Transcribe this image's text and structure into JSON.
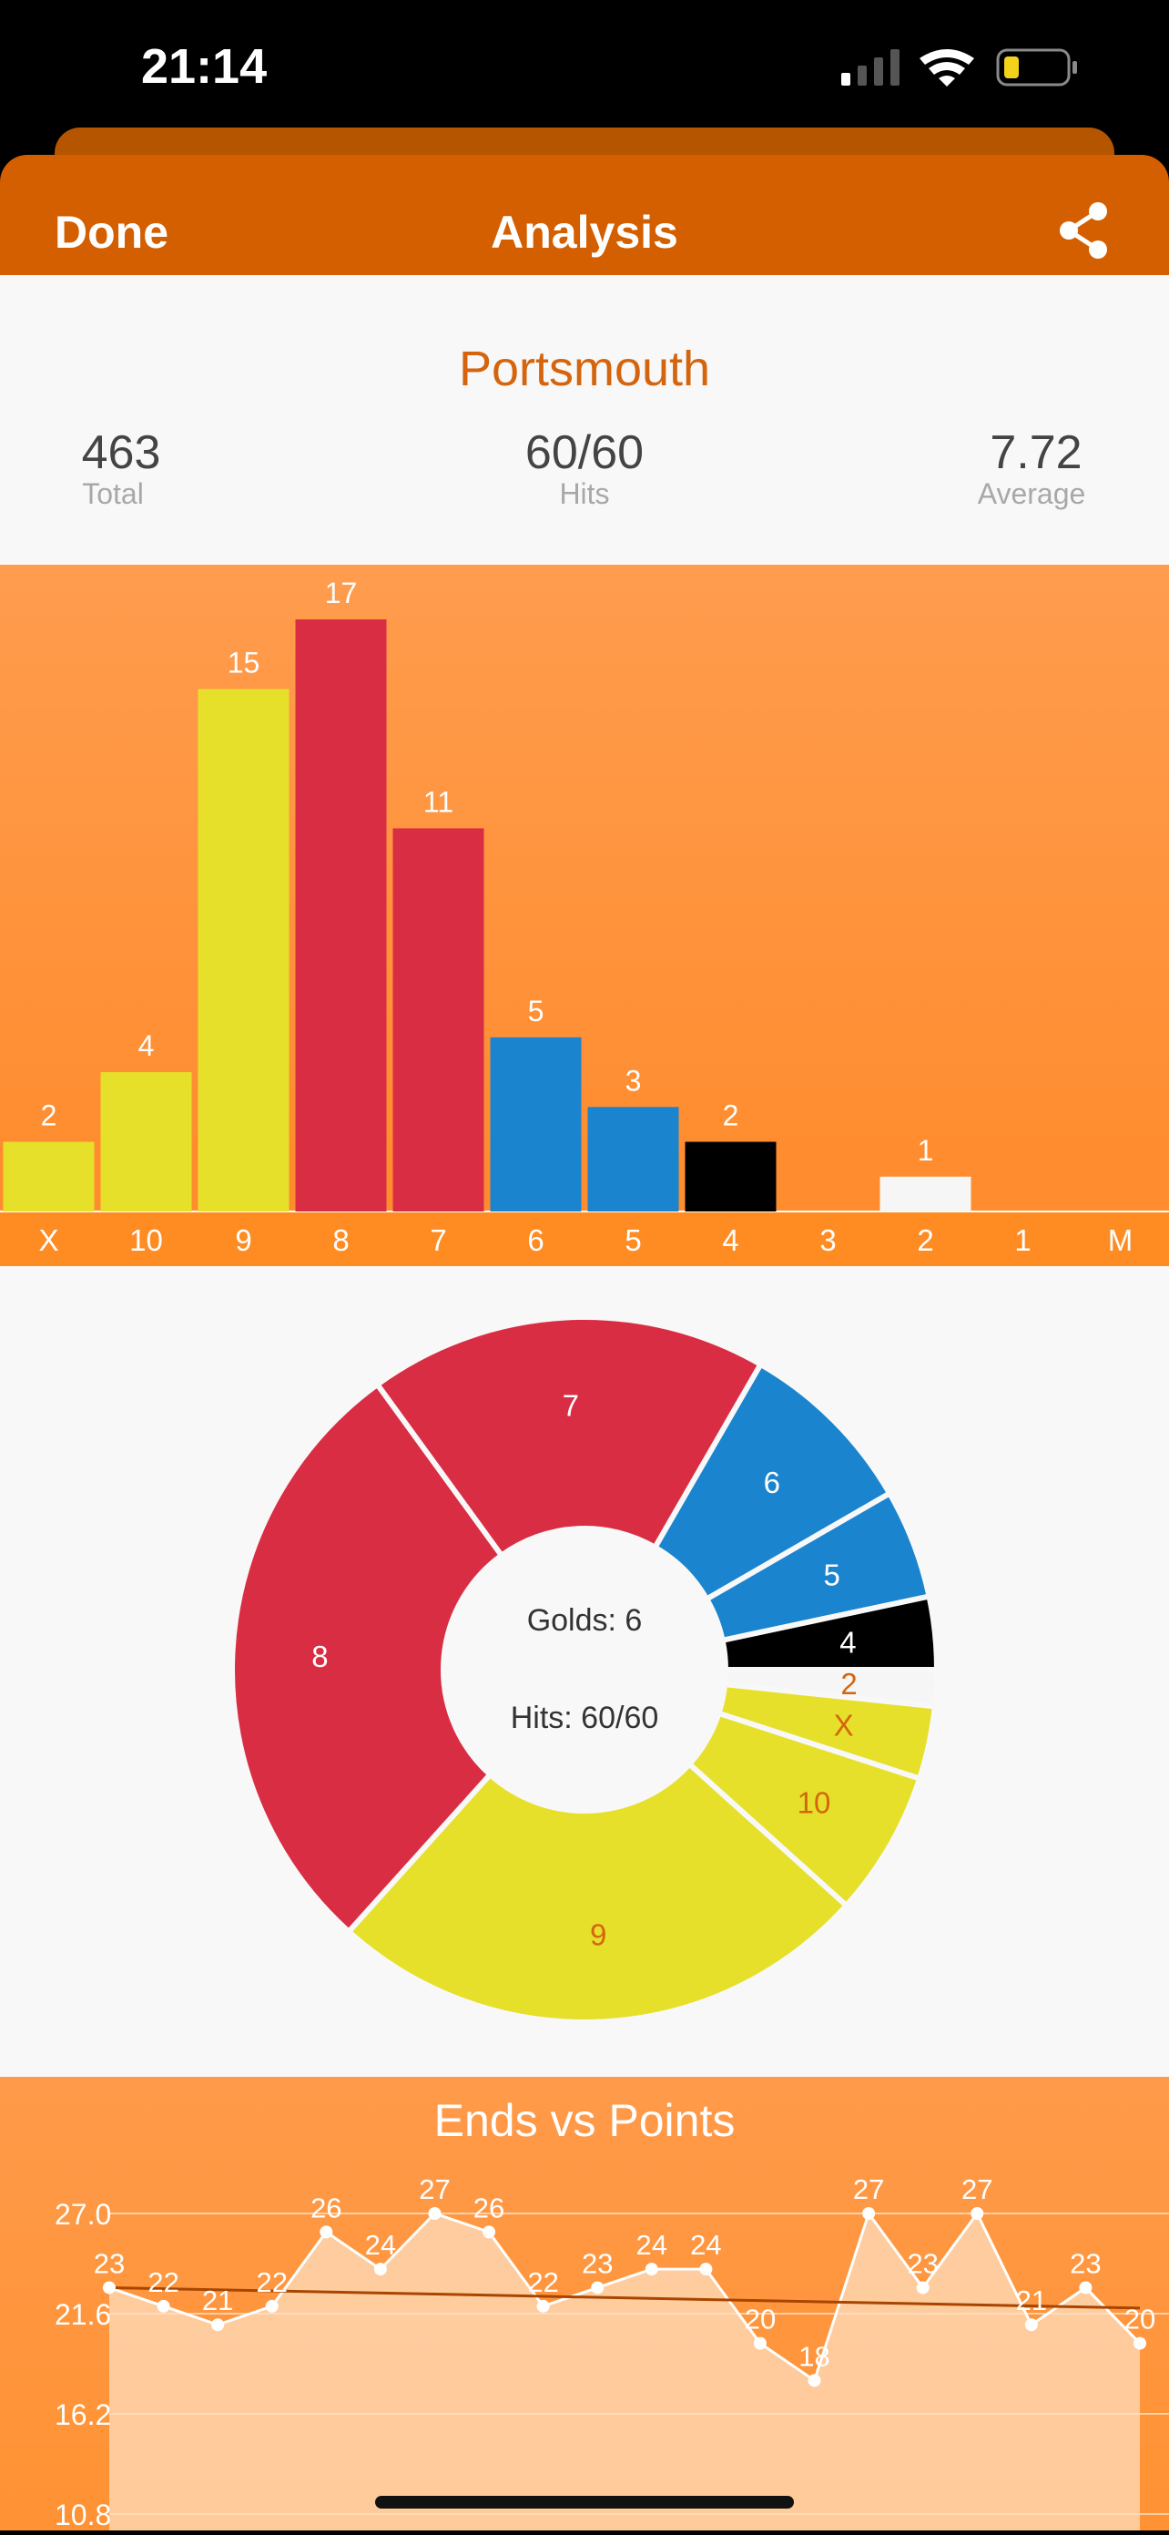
{
  "status": {
    "time": "21:14"
  },
  "nav": {
    "done": "Done",
    "title": "Analysis"
  },
  "summary": {
    "name": "Portsmouth",
    "total": {
      "value": "463",
      "label": "Total"
    },
    "hits": {
      "value": "60/60",
      "label": "Hits"
    },
    "average": {
      "value": "7.72",
      "label": "Average"
    }
  },
  "colors": {
    "gold": "#e6e02a",
    "red": "#d92d44",
    "blue": "#1b84cf",
    "black": "#000000",
    "white": "#f6f6f6",
    "orange": "#d45f00",
    "labelOrange": "#d4650e"
  },
  "chart_data": [
    {
      "type": "bar",
      "categories": [
        "X",
        "10",
        "9",
        "8",
        "7",
        "6",
        "5",
        "4",
        "3",
        "2",
        "1",
        "M"
      ],
      "values": [
        2,
        4,
        15,
        17,
        11,
        5,
        3,
        2,
        0,
        1,
        0,
        0
      ],
      "colors": [
        "#e6e02a",
        "#e6e02a",
        "#e6e02a",
        "#d92d44",
        "#d92d44",
        "#1b84cf",
        "#1b84cf",
        "#000000",
        "#000000",
        "#f6f6f6",
        "#f6f6f6",
        "#f6f6f6"
      ],
      "ylim": [
        0,
        17
      ]
    },
    {
      "type": "pie",
      "style": "donut",
      "center_lines": [
        "Golds: 6",
        "Hits: 60/60"
      ],
      "slices": [
        {
          "label": "2",
          "value": 1,
          "color": "#f6f6f6",
          "text": "#d4650e"
        },
        {
          "label": "X",
          "value": 2,
          "color": "#e6e02a",
          "text": "#d4650e"
        },
        {
          "label": "10",
          "value": 4,
          "color": "#e6e02a",
          "text": "#d4650e"
        },
        {
          "label": "9",
          "value": 15,
          "color": "#e6e02a",
          "text": "#d4650e"
        },
        {
          "label": "8",
          "value": 17,
          "color": "#d92d44",
          "text": "#ffffff"
        },
        {
          "label": "7",
          "value": 11,
          "color": "#d92d44",
          "text": "#ffffff"
        },
        {
          "label": "6",
          "value": 5,
          "color": "#1b84cf",
          "text": "#ffffff"
        },
        {
          "label": "5",
          "value": 3,
          "color": "#1b84cf",
          "text": "#ffffff"
        },
        {
          "label": "4",
          "value": 2,
          "color": "#000000",
          "text": "#ffffff"
        }
      ]
    },
    {
      "type": "line",
      "title": "Ends vs Points",
      "y": [
        23,
        22,
        21,
        22,
        26,
        24,
        27,
        26,
        22,
        23,
        24,
        24,
        20,
        18,
        27,
        23,
        27,
        21,
        23,
        20
      ],
      "yticks": [
        "27.0",
        "21.6",
        "16.2",
        "10.8"
      ],
      "ylim": [
        10.8,
        27.0
      ],
      "trend": [
        23.0,
        21.9
      ],
      "grid": true
    }
  ]
}
